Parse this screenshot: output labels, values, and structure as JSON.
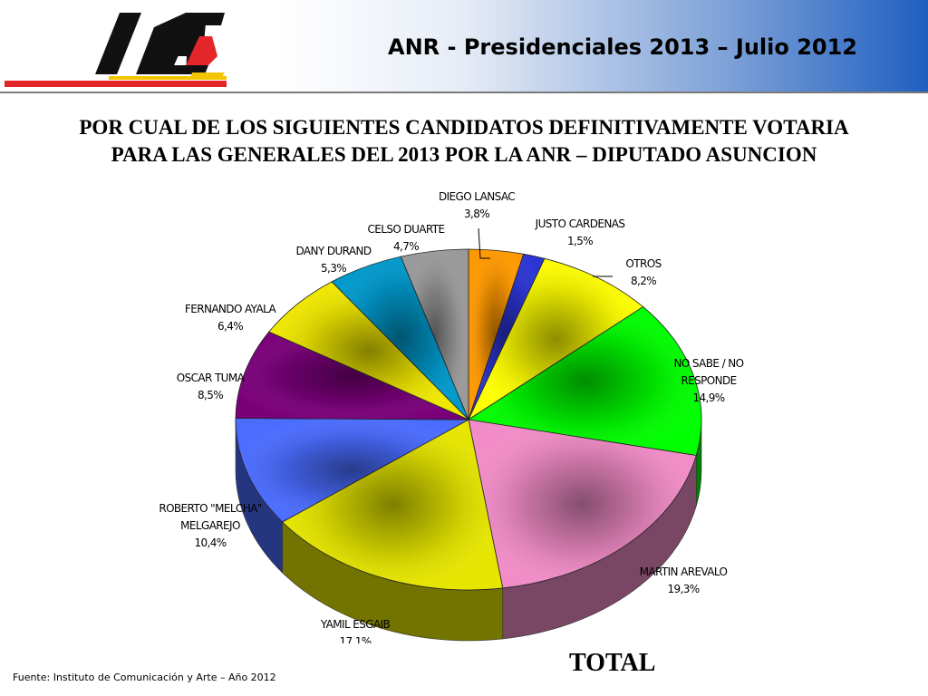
{
  "header": {
    "logo_text": "ICA",
    "title": "ANR - Presidenciales 2013 – Julio 2012"
  },
  "question": {
    "line1": "POR CUAL DE LOS SIGUIENTES CANDIDATOS DEFINITIVAMENTE VOTARIA",
    "line2": "PARA LAS GENERALES DEL 2013 POR LA ANR – DIPUTADO ASUNCION"
  },
  "chart_caption": "TOTAL",
  "source": "Fuente: Instituto de Comunicación y Arte – Año 2012",
  "colors": {
    "logo_red": "#e3262a",
    "logo_yellow": "#f5c400",
    "header_blue": "#1f5fc0"
  },
  "chart_data": {
    "type": "pie",
    "title": "TOTAL",
    "legend": "none",
    "slices": [
      {
        "name": "DIEGO LANSAC",
        "value": 3.8,
        "value_label": "3,8%",
        "color": "#ff9900"
      },
      {
        "name": "JUSTO CARDENAS",
        "value": 1.5,
        "value_label": "1,5%",
        "color": "#2b35d4"
      },
      {
        "name": "OTROS",
        "value": 8.2,
        "value_label": "8,2%",
        "color": "#ffff00"
      },
      {
        "name": "NO SABE / NO RESPONDE",
        "value": 14.9,
        "value_label": "14,9%",
        "color": "#00ff00"
      },
      {
        "name": "MARTIN AREVALO",
        "value": 19.3,
        "value_label": "19,3%",
        "color": "#f28cc8"
      },
      {
        "name": "YAMIL ESGAIB",
        "value": 17.1,
        "value_label": "17,1%",
        "color": "#e6e600"
      },
      {
        "name": "ROBERTO \"MELCHA\" MELGAREJO",
        "value": 10.4,
        "value_label": "10,4%",
        "color": "#4a6cff"
      },
      {
        "name": "OSCAR TUMA",
        "value": 8.5,
        "value_label": "8,5%",
        "color": "#7a007a"
      },
      {
        "name": "FERNANDO AYALA",
        "value": 6.4,
        "value_label": "6,4%",
        "color": "#f0e800"
      },
      {
        "name": "DANY DURAND",
        "value": 5.3,
        "value_label": "5,3%",
        "color": "#0099cc"
      },
      {
        "name": "CELSO DUARTE",
        "value": 4.7,
        "value_label": "4,7%",
        "color": "#9a9a9a"
      }
    ]
  }
}
